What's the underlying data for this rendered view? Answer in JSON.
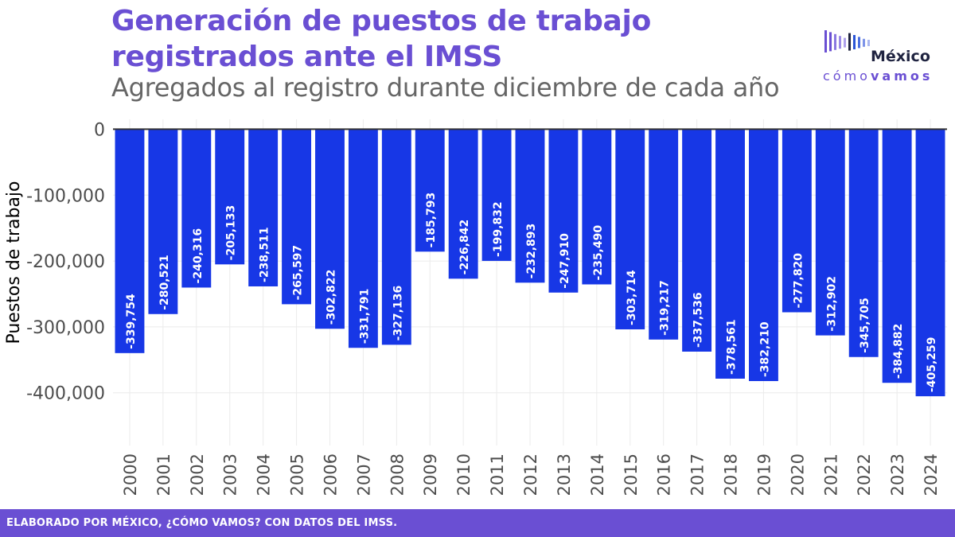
{
  "header": {
    "title_line1": "Generación de puestos de trabajo",
    "title_line2": "registrados ante el IMSS",
    "subtitle": "Agregados al registro durante diciembre de cada año"
  },
  "logo": {
    "name": "México",
    "tagline_light": "cómo",
    "tagline_bold": "vamos",
    "bar_colors": [
      "#6a4fd3",
      "#6a4fd3",
      "#8a78e0",
      "#9a8ae6",
      "#aea0ec",
      "#1f2340",
      "#2b55d6",
      "#4a6ee0",
      "#7d93e8",
      "#a9b6f0"
    ]
  },
  "footer": {
    "text": "ELABORADO POR MÉXICO, ¿CÓMO VAMOS? CON DATOS DEL IMSS."
  },
  "colors": {
    "accent": "#6a4fd3",
    "bar": "#1737e6",
    "gridline": "#ebebeb",
    "zero_line": "#333333"
  },
  "chart_data": {
    "type": "bar",
    "title": "Generación de puestos de trabajo registrados ante el IMSS",
    "subtitle": "Agregados al registro durante diciembre de cada año",
    "xlabel": "",
    "ylabel": "Puestos de trabajo",
    "ylim": [
      -480000,
      15000
    ],
    "yticks": [
      0,
      -100000,
      -200000,
      -300000,
      -400000
    ],
    "ytick_labels": [
      "0",
      "-100,000",
      "-200,000",
      "-300,000",
      "-400,000"
    ],
    "grid": true,
    "legend": "none",
    "categories": [
      "2000",
      "2001",
      "2002",
      "2003",
      "2004",
      "2005",
      "2006",
      "2007",
      "2008",
      "2009",
      "2010",
      "2011",
      "2012",
      "2013",
      "2014",
      "2015",
      "2016",
      "2017",
      "2018",
      "2019",
      "2020",
      "2021",
      "2022",
      "2023",
      "2024"
    ],
    "values": [
      -339754,
      -280521,
      -240316,
      -205133,
      -238511,
      -265597,
      -302822,
      -331791,
      -327136,
      -185793,
      -226842,
      -199832,
      -232893,
      -247910,
      -235490,
      -303714,
      -319217,
      -337536,
      -378561,
      -382210,
      -277820,
      -312902,
      -345705,
      -384882,
      -405259
    ],
    "value_labels": [
      "-339,754",
      "-280,521",
      "-240,316",
      "-205,133",
      "-238,511",
      "-265,597",
      "-302,822",
      "-331,791",
      "-327,136",
      "-185,793",
      "-226,842",
      "-199,832",
      "-232,893",
      "-247,910",
      "-235,490",
      "-303,714",
      "-319,217",
      "-337,536",
      "-378,561",
      "-382,210",
      "-277,820",
      "-312,902",
      "-345,705",
      "-384,882",
      "-405,259"
    ]
  }
}
